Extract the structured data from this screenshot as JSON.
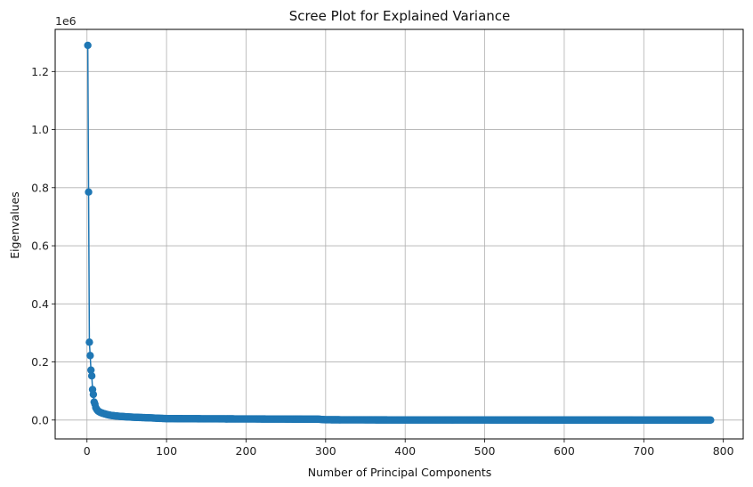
{
  "chart_data": {
    "type": "line",
    "title": "Scree Plot for Explained Variance",
    "xlabel": "Number of Principal Components",
    "ylabel": "Eigenvalues",
    "y_offset_label": "1e6",
    "xlim": [
      -40,
      825
    ],
    "ylim": [
      -65000,
      1345000
    ],
    "x_ticks": [
      0,
      100,
      200,
      300,
      400,
      500,
      600,
      700,
      800
    ],
    "x_tick_labels": [
      "0",
      "100",
      "200",
      "300",
      "400",
      "500",
      "600",
      "700",
      "800"
    ],
    "y_ticks": [
      0,
      200000,
      400000,
      600000,
      800000,
      1000000,
      1200000
    ],
    "y_tick_labels": [
      "0.0",
      "0.2",
      "0.4",
      "0.6",
      "0.8",
      "1.0",
      "1.2"
    ],
    "grid": true,
    "marker": "circle",
    "color": "#1f77b4",
    "series": [
      {
        "x_range": [
          1,
          784
        ],
        "points": [
          [
            1,
            1290000
          ],
          [
            2,
            785000
          ],
          [
            3,
            268000
          ],
          [
            4,
            222000
          ],
          [
            5,
            172000
          ],
          [
            6,
            152000
          ],
          [
            7,
            105000
          ],
          [
            8,
            88000
          ],
          [
            9,
            62000
          ],
          [
            10,
            55000
          ],
          [
            11,
            43000
          ],
          [
            12,
            38000
          ],
          [
            13,
            34000
          ],
          [
            14,
            31000
          ],
          [
            15,
            29000
          ],
          [
            17,
            26000
          ],
          [
            20,
            23000
          ],
          [
            25,
            19000
          ],
          [
            30,
            16000
          ],
          [
            40,
            13000
          ],
          [
            50,
            11000
          ],
          [
            60,
            9500
          ],
          [
            70,
            8500
          ],
          [
            80,
            7500
          ],
          [
            90,
            6000
          ],
          [
            100,
            5000
          ],
          [
            150,
            4200
          ],
          [
            200,
            3800
          ],
          [
            250,
            3300
          ],
          [
            290,
            3000
          ],
          [
            300,
            1000
          ],
          [
            350,
            600
          ],
          [
            400,
            400
          ],
          [
            500,
            250
          ],
          [
            600,
            150
          ],
          [
            700,
            80
          ],
          [
            784,
            0
          ]
        ]
      }
    ]
  }
}
